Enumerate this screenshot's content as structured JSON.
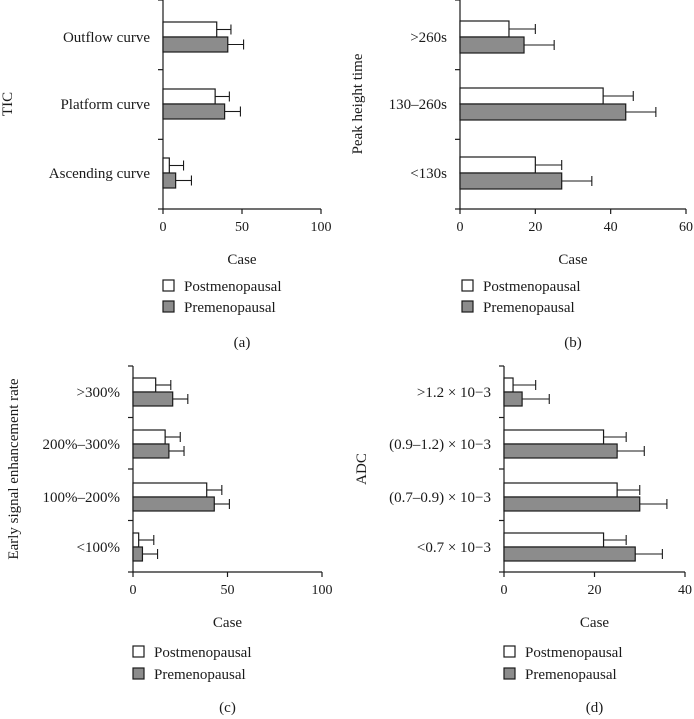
{
  "colors": {
    "postmenopausal_fill": "#ffffff",
    "premenopausal_fill": "#8c8c8c",
    "stroke": "#1a1a1a"
  },
  "chart_data": [
    {
      "type": "bar",
      "orientation": "horizontal",
      "panel": "(a)",
      "ylabel": "TIC",
      "xlabel": "Case",
      "xlim": [
        0,
        100
      ],
      "xticks": [
        0,
        50,
        100
      ],
      "categories": [
        "Outflow curve",
        "Platform curve",
        "Ascending curve"
      ],
      "series": [
        {
          "name": "Postmenopausal",
          "values": [
            34,
            33,
            4
          ],
          "errors": [
            9,
            9,
            9
          ]
        },
        {
          "name": "Premenopausal",
          "values": [
            41,
            39,
            8
          ],
          "errors": [
            10,
            10,
            10
          ]
        }
      ],
      "legend": [
        "Postmenopausal",
        "Premenopausal"
      ]
    },
    {
      "type": "bar",
      "orientation": "horizontal",
      "panel": "(b)",
      "ylabel": "Peak height time",
      "xlabel": "Case",
      "xlim": [
        0,
        60
      ],
      "xticks": [
        0,
        20,
        40,
        60
      ],
      "categories": [
        ">260s",
        "130–260s",
        "<130s"
      ],
      "series": [
        {
          "name": "Postmenopausal",
          "values": [
            13,
            38,
            20
          ],
          "errors": [
            7,
            8,
            7
          ]
        },
        {
          "name": "Premenopausal",
          "values": [
            17,
            44,
            27
          ],
          "errors": [
            8,
            8,
            8
          ]
        }
      ],
      "legend": [
        "Postmenopausal",
        "Premenopausal"
      ]
    },
    {
      "type": "bar",
      "orientation": "horizontal",
      "panel": "(c)",
      "ylabel": "Early signal enhancement rate",
      "xlabel": "Case",
      "xlim": [
        0,
        100
      ],
      "xticks": [
        0,
        50,
        100
      ],
      "categories": [
        ">300%",
        "200%–300%",
        "100%–200%",
        "<100%"
      ],
      "series": [
        {
          "name": "Postmenopausal",
          "values": [
            12,
            17,
            39,
            3
          ],
          "errors": [
            8,
            8,
            8,
            8
          ]
        },
        {
          "name": "Premenopausal",
          "values": [
            21,
            19,
            43,
            5
          ],
          "errors": [
            8,
            8,
            8,
            8
          ]
        }
      ],
      "legend": [
        "Postmenopausal",
        "Premenopausal"
      ]
    },
    {
      "type": "bar",
      "orientation": "horizontal",
      "panel": "(d)",
      "ylabel": "ADC",
      "xlabel": "Case",
      "xlim": [
        0,
        40
      ],
      "xticks": [
        0,
        20,
        40
      ],
      "categories": [
        ">1.2 × 10−3",
        "(0.9–1.2) × 10−3",
        "(0.7–0.9) × 10−3",
        "<0.7 × 10−3"
      ],
      "series": [
        {
          "name": "Postmenopausal",
          "values": [
            2,
            22,
            25,
            22
          ],
          "errors": [
            5,
            5,
            5,
            5
          ]
        },
        {
          "name": "Premenopausal",
          "values": [
            4,
            25,
            30,
            29
          ],
          "errors": [
            6,
            6,
            6,
            6
          ]
        }
      ],
      "legend": [
        "Postmenopausal",
        "Premenopausal"
      ]
    }
  ]
}
